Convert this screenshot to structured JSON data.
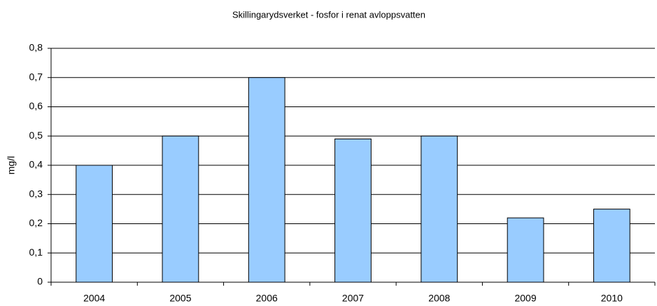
{
  "chart_data": {
    "type": "bar",
    "title": "Skillingarydsverket - fosfor i renat avloppsvatten",
    "y_label": "mg/l",
    "categories": [
      "2004",
      "2005",
      "2006",
      "2007",
      "2008",
      "2009",
      "2010"
    ],
    "values": [
      0.4,
      0.5,
      0.7,
      0.49,
      0.5,
      0.22,
      0.25
    ],
    "color": "#99ccff",
    "ylim": [
      0,
      0.8
    ],
    "yticks": [
      0,
      {
        "value": 0.1,
        "label": "0,1"
      },
      {
        "value": 0.2,
        "label": "0,2"
      },
      {
        "value": 0.3,
        "label": "0,3"
      },
      {
        "value": 0.4,
        "label": "0,4"
      },
      {
        "value": 0.5,
        "label": "0,5"
      },
      {
        "value": 0.6,
        "label": "0,6"
      },
      {
        "value": 0.7,
        "label": "0,7"
      },
      {
        "value": 0.8,
        "label": "0,8"
      }
    ],
    "grid": true
  }
}
